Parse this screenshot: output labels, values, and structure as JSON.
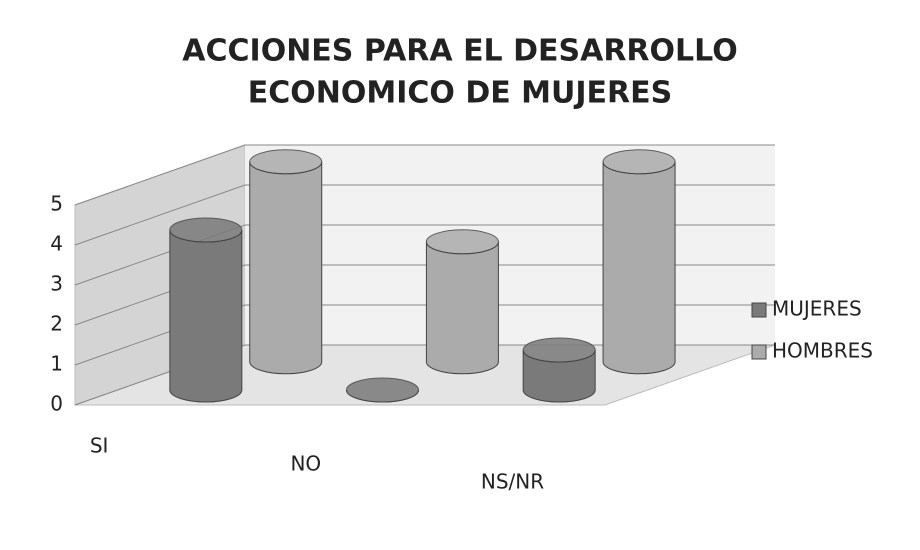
{
  "chart_data": {
    "type": "bar3d",
    "title": [
      "ACCIONES PARA EL DESARROLLO",
      "ECONOMICO DE MUJERES"
    ],
    "categories": [
      "SI",
      "NO",
      "NS/NR"
    ],
    "series": [
      {
        "name": "MUJERES",
        "color": "#7a7a7a",
        "values": [
          4,
          0,
          1
        ]
      },
      {
        "name": "HOMBRES",
        "color": "#ababab",
        "values": [
          5,
          3,
          5
        ]
      }
    ],
    "ylim": [
      0,
      5
    ],
    "yticks": [
      0,
      1,
      2,
      3,
      4,
      5
    ],
    "grid": true,
    "legend": "right"
  }
}
